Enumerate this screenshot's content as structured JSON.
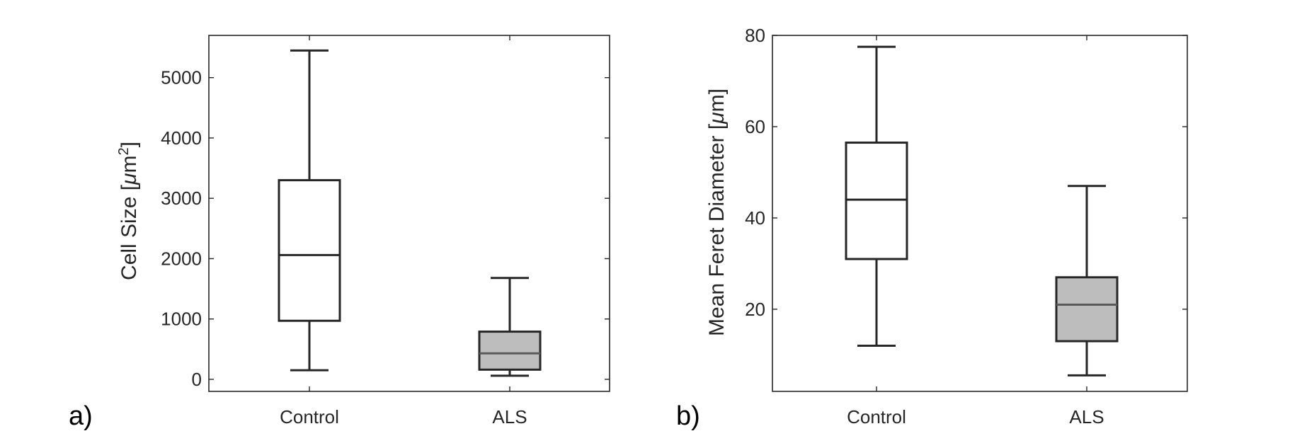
{
  "chart_data": [
    {
      "type": "box",
      "panel_label": "a)",
      "ylabel": "Cell Size [μm²]",
      "ylabel_main": "Cell Size [",
      "ylabel_mu": "μ",
      "ylabel_unit": "m",
      "ylabel_sup": "2",
      "ylabel_close": "]",
      "ylim": [
        -200,
        5700
      ],
      "yticks": [
        0,
        1000,
        2000,
        3000,
        4000,
        5000
      ],
      "ytick_labels": [
        "0",
        "1000",
        "2000",
        "3000",
        "4000",
        "5000"
      ],
      "categories": [
        "Control",
        "ALS"
      ],
      "boxes": [
        {
          "category": "Control",
          "whisker_low": 150,
          "q1": 970,
          "median": 2060,
          "q3": 3300,
          "whisker_high": 5450,
          "fill": "#ffffff"
        },
        {
          "category": "ALS",
          "whisker_low": 60,
          "q1": 160,
          "median": 430,
          "q3": 790,
          "whisker_high": 1680,
          "fill": "#bdbdbd"
        }
      ]
    },
    {
      "type": "box",
      "panel_label": "b)",
      "ylabel": "Mean Feret Diameter [μm]",
      "ylabel_main": "Mean Feret Diameter [",
      "ylabel_mu": "μ",
      "ylabel_unit": "m",
      "ylabel_sup": "",
      "ylabel_close": "]",
      "ylim": [
        2,
        80
      ],
      "yticks": [
        20,
        40,
        60,
        80
      ],
      "ytick_labels": [
        "20",
        "40",
        "60",
        "80"
      ],
      "categories": [
        "Control",
        "ALS"
      ],
      "boxes": [
        {
          "category": "Control",
          "whisker_low": 12,
          "q1": 31,
          "median": 44,
          "q3": 56.5,
          "whisker_high": 77.5,
          "fill": "#ffffff"
        },
        {
          "category": "ALS",
          "whisker_low": 5.5,
          "q1": 13,
          "median": 21,
          "q3": 27,
          "whisker_high": 47,
          "fill": "#bdbdbd"
        }
      ]
    }
  ],
  "colors": {
    "axis": "#262626",
    "box_edge": "#262626",
    "control_fill": "#ffffff",
    "als_fill": "#bdbdbd",
    "median_control": "#262626",
    "median_als": "#5a5a5a"
  }
}
